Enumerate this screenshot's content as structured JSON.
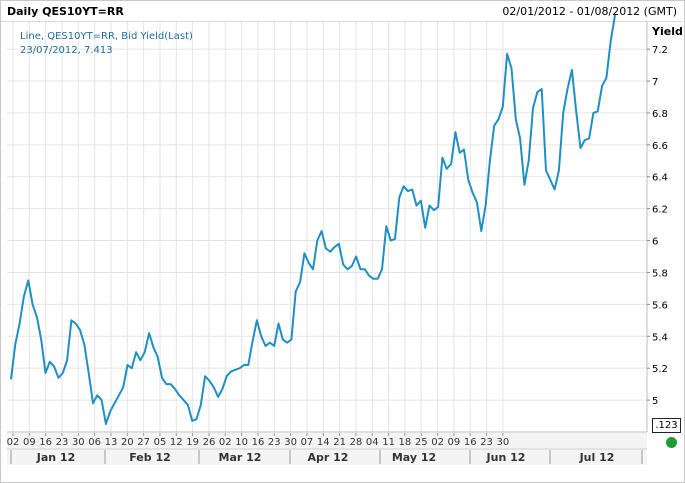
{
  "header": {
    "title": "Daily QES10YT=RR",
    "range": "02/01/2012 - 01/08/2012 (GMT)"
  },
  "legend": {
    "series_label": "Line, QES10YT=RR, Bid Yield(Last)",
    "last_point": "23/07/2012, 7.413"
  },
  "axis": {
    "ylabel": "Yield"
  },
  "format_badge": ".123",
  "colors": {
    "line": "#1f8fc4",
    "grid": "#e4e4e4",
    "status": "#1f9d35"
  },
  "chart_data": {
    "type": "line",
    "series": [
      {
        "name": "QES10YT=RR",
        "values": [
          5.13,
          5.35,
          5.48,
          5.65,
          5.75,
          5.6,
          5.52,
          5.38,
          5.17,
          5.24,
          5.21,
          5.14,
          5.17,
          5.25,
          5.5,
          5.48,
          5.44,
          5.35,
          5.17,
          4.98,
          5.03,
          5.0,
          4.85,
          4.93,
          4.98,
          5.03,
          5.08,
          5.22,
          5.2,
          5.3,
          5.25,
          5.3,
          5.42,
          5.33,
          5.27,
          5.14,
          5.1,
          5.1,
          5.07,
          5.03,
          5.0,
          4.97,
          4.87,
          4.88,
          4.97,
          5.15,
          5.12,
          5.08,
          5.02,
          5.07,
          5.15,
          5.18,
          5.19,
          5.2,
          5.22,
          5.22,
          5.37,
          5.5,
          5.4,
          5.34,
          5.36,
          5.34,
          5.48,
          5.38,
          5.36,
          5.38,
          5.68,
          5.74,
          5.92,
          5.86,
          5.82,
          6.0,
          6.06,
          5.95,
          5.93,
          5.96,
          5.98,
          5.85,
          5.82,
          5.84,
          5.9,
          5.82,
          5.82,
          5.78,
          5.76,
          5.76,
          5.82,
          6.09,
          6.0,
          6.01,
          6.27,
          6.34,
          6.31,
          6.32,
          6.22,
          6.25,
          6.08,
          6.22,
          6.19,
          6.21,
          6.52,
          6.45,
          6.48,
          6.68,
          6.55,
          6.57,
          6.38,
          6.3,
          6.24,
          6.06,
          6.22,
          6.5,
          6.72,
          6.76,
          6.84,
          7.17,
          7.08,
          6.76,
          6.64,
          6.35,
          6.5,
          6.83,
          6.93,
          6.95,
          6.44,
          6.38,
          6.32,
          6.44,
          6.8,
          6.95,
          7.07,
          6.81,
          6.58,
          6.63,
          6.64,
          6.8,
          6.81,
          6.97,
          7.02,
          7.25,
          7.413
        ]
      }
    ],
    "ylim": [
      4.88,
      7.413
    ],
    "yticks": [
      5,
      5.2,
      5.4,
      5.6,
      5.8,
      6,
      6.2,
      6.4,
      6.6,
      6.8,
      7,
      7.2
    ],
    "xticks": [
      "02",
      "09",
      "16",
      "23",
      "30",
      "06",
      "13",
      "20",
      "27",
      "05",
      "12",
      "19",
      "26",
      "02",
      "10",
      "16",
      "23",
      "30",
      "07",
      "14",
      "21",
      "28",
      "04",
      "11",
      "18",
      "25",
      "02",
      "09",
      "16",
      "23",
      "30"
    ],
    "months": [
      "Jan 12",
      "Feb 12",
      "Mar 12",
      "Apr 12",
      "May 12",
      "Jun 12",
      "Jul 12"
    ],
    "grid": true,
    "legend_position": "top-left"
  }
}
